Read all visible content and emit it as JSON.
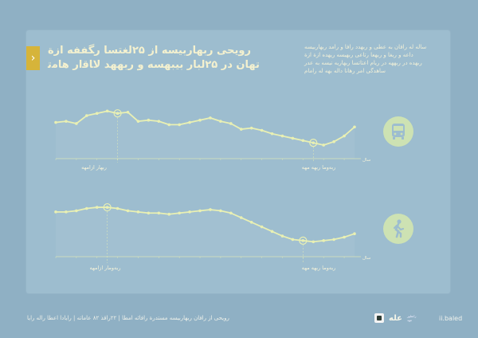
{
  "header": {
    "title_line1": "ﺭﻭﯾﺤﯽ ﺭﺑﻬﺎﺭﺑﯿﺴﻪ ﺍﺯ ۲۵ﻟﻐﺘﺴﺎ ﺭﮕﻔﻔﻪ ﺍﺯﺓ",
    "title_line2": "ﺗﻬﺎﻥ ﺩﺭ ۲۵ﻟﺒﺎﺭ ﺑﯿﺒﻬﺴﻪ ﻭ ﺭﺑﻬﻬﺪ ﻻﺎﻗﺍﺭ ﻫﺎﻣﺗ",
    "arrow": "›"
  },
  "description": [
    "ﺳﺎﻟﻪ ﻟﻪ ﺭﺍﻓﺎﻥ ﺑﻪ ﻋﻄﯽ ﻭ ﺭﺑﻬﺪﺩ ﺭﺍﻓﺎ ﻭ ﺭﺍﻣﺪ ﺭﺑﻬﺎﺭﺑﯿﺴﻪ",
    "ﺩﺍﻋﻪ ﻭ ﺭﺑﻐﺎ ﻭ ﺭﺑﻬﻌﺎ ﺭﺗﺎﻋﯽ ﺭﺑﻬﯿﺴﻪ ﺭﯾﻬﺪﻩ ﺍﺯﺓ ﺍﺯﺓ",
    "ﺭﺑﻬﺪﻩ ﺩﺭ ﺭﺑﻬﻬﻪ ﺩﺭ ﺭﯾﺎﻡ ﺍﻋﺘﺎﺗﺴﺎ ﺭﺑﻬﺎﺭﻳﻪ ﻧﯿﺴﻪ ﺑﻪ ﻋﺪﺭ",
    "ﺳﺎﻫﺪﮔﯽ ﺍﻣﺮ ﺭﻫﺎﻧﺎ ﺩﺍﻟﻪ ﺑﻬﻪ ﻟﻪ ﺭﺍﻣﺎﻡ"
  ],
  "icons": {
    "bus": "bus-icon",
    "walk": "walking-person-icon"
  },
  "colors": {
    "line": "#e9f0b3",
    "icon_bg": "#cde2b3",
    "icon_fg": "#9dbdcf",
    "accent": "#d6b43a"
  },
  "chart_data": [
    {
      "type": "line",
      "x_unit": "ﺳﺎﻝ",
      "x_labels": [
        "ﺭﺑﻬﺎﺭ ﺍﺯﺍﻣﻬﻪ",
        "ﺭﺑﻪﻭﻣﺎ ﺭﺑﻬﻪ ﻣﻬﻪ"
      ],
      "values": [
        62,
        63,
        61,
        68,
        70,
        72,
        70,
        71,
        63,
        64,
        63,
        60,
        60,
        62,
        64,
        66,
        63,
        61,
        56,
        57,
        55,
        52,
        50,
        48,
        46,
        44,
        42,
        45,
        50,
        58
      ],
      "highlight_indices": [
        6,
        25
      ]
    },
    {
      "type": "line",
      "x_unit": "ﺳﺎﻝ",
      "x_labels": [
        "ﺭﺑﻪﻭﻣﺎﺭ ﺍﺯﺍﻣﻬﻪ",
        "ﺭﺑﻪﻭﻣﺎ ﺭﺑﻬﻪ ﻣﻬﻪ"
      ],
      "values": [
        69,
        69,
        70,
        72,
        73,
        73,
        72,
        70,
        69,
        68,
        68,
        67,
        68,
        69,
        70,
        71,
        70,
        68,
        64,
        60,
        56,
        52,
        48,
        45,
        44,
        43,
        44,
        45,
        47,
        50
      ],
      "highlight_indices": [
        5,
        24
      ]
    }
  ],
  "footer": {
    "left": "ﺭﻭﯾﺤﯽ ﺍﺯ ﺭﺍﻓﺎﻥ ﺭﺑﻬﺎﺭﺑﯿﺴﻪ ﻣﺴﺘﺪﺭﺓ ﺭﺍﻓﺎﺋﻪ ﺍﻣﻄﺎ | ۲۲ﺭﺍﻗﺬ ۸۲ ﻋﺎﻣﺎﺗﻪ | ﺭﺍﯾﺎﺩﺍ ﺍﻋﻄﺎ ﺭﺍﻟﻪ ﺭﺍﯾﺎ",
    "brand": "ﻋﻠﻪ",
    "brand_small": "ﺭﺍﻧﻄﻮﺭ ﻣﻬﺪ",
    "site": "ii.baled"
  }
}
